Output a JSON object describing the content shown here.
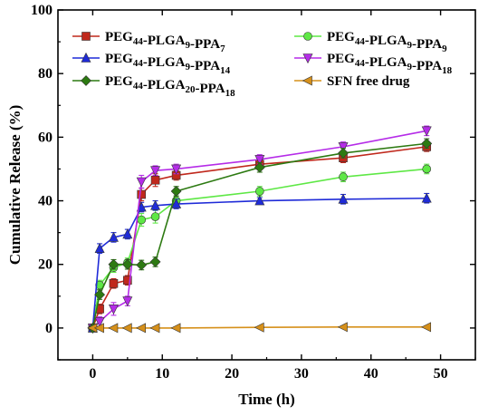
{
  "chart_data": {
    "type": "line",
    "xlabel": "Time (h)",
    "ylabel": "Cumulative Release (%)",
    "xlim": [
      -5,
      55
    ],
    "ylim": [
      -10,
      100
    ],
    "xticks": [
      0,
      10,
      20,
      30,
      40,
      50
    ],
    "yticks": [
      0,
      20,
      40,
      60,
      80,
      100
    ],
    "grid": false,
    "legend_position": "top",
    "x": [
      0,
      1,
      3,
      5,
      7,
      9,
      12,
      24,
      36,
      48
    ],
    "series": [
      {
        "name": "PEG44-PLGA9-PPA7",
        "label_parts": [
          [
            "PEG",
            false
          ],
          [
            "44",
            true
          ],
          [
            "-PLGA",
            false
          ],
          [
            "9",
            true
          ],
          [
            "-PPA",
            false
          ],
          [
            "7",
            true
          ]
        ],
        "color": "#c0281c",
        "marker": "square",
        "values": [
          0,
          6,
          14,
          15,
          42,
          46.5,
          48,
          51.5,
          53.5,
          57
        ],
        "errors": [
          0.5,
          1.5,
          1.5,
          1.5,
          2,
          2,
          1.5,
          1.5,
          1.5,
          1.5
        ]
      },
      {
        "name": "PEG44-PLGA9-PPA9",
        "label_parts": [
          [
            "PEG",
            false
          ],
          [
            "44",
            true
          ],
          [
            "-PLGA",
            false
          ],
          [
            "9",
            true
          ],
          [
            "-PPA",
            false
          ],
          [
            "9",
            true
          ]
        ],
        "color": "#5ee845",
        "marker": "circle",
        "values": [
          0,
          13.5,
          19,
          20.5,
          34,
          35,
          40,
          43,
          47.5,
          50
        ],
        "errors": [
          0.5,
          1.5,
          1.5,
          1.5,
          2,
          2,
          1.5,
          1.5,
          1.5,
          1.5
        ]
      },
      {
        "name": "PEG44-PLGA9-PPA14",
        "label_parts": [
          [
            "PEG",
            false
          ],
          [
            "44",
            true
          ],
          [
            "-PLGA",
            false
          ],
          [
            "9",
            true
          ],
          [
            "-PPA",
            false
          ],
          [
            "14",
            true
          ]
        ],
        "color": "#1f2bd8",
        "marker": "triangle-up",
        "values": [
          0,
          25,
          28.5,
          29.5,
          38,
          38.5,
          39,
          40,
          40.5,
          40.8
        ],
        "errors": [
          0.5,
          1.5,
          1.5,
          1.5,
          1.5,
          1.5,
          1.5,
          1,
          1.5,
          1.5
        ]
      },
      {
        "name": "PEG44-PLGA9-PPA18",
        "label_parts": [
          [
            "PEG",
            false
          ],
          [
            "44",
            true
          ],
          [
            "-PLGA",
            false
          ],
          [
            "9",
            true
          ],
          [
            "-PPA",
            false
          ],
          [
            "18",
            true
          ]
        ],
        "color": "#b52ce8",
        "marker": "triangle-down",
        "values": [
          0,
          2,
          6,
          8.5,
          46,
          49.5,
          50,
          53,
          57,
          62
        ],
        "errors": [
          0.5,
          1.5,
          2,
          1.5,
          2,
          1.5,
          1.5,
          1.5,
          1.5,
          1.5
        ]
      },
      {
        "name": "PEG44-PLGA20-PPA18",
        "label_parts": [
          [
            "PEG",
            false
          ],
          [
            "44",
            true
          ],
          [
            "-PLGA",
            false
          ],
          [
            "20",
            true
          ],
          [
            "-PPA",
            false
          ],
          [
            "18",
            true
          ]
        ],
        "color": "#2d7a12",
        "marker": "diamond",
        "values": [
          0,
          10.5,
          20,
          20,
          19.8,
          20.8,
          43,
          50.5,
          55,
          58
        ],
        "errors": [
          0.5,
          1.5,
          1.5,
          1.5,
          1.5,
          1.5,
          1.5,
          1.5,
          1.5,
          1.5
        ]
      },
      {
        "name": "SFN free drug",
        "label_parts": [
          [
            "SFN free drug",
            false
          ]
        ],
        "color": "#d6901a",
        "marker": "triangle-left",
        "values": [
          0,
          0,
          0,
          0,
          0,
          0,
          0,
          0.2,
          0.3,
          0.3
        ],
        "errors": [
          0.3,
          0.3,
          0.3,
          0.3,
          0.3,
          0.3,
          0.3,
          0.3,
          0.3,
          0.3
        ]
      }
    ]
  }
}
